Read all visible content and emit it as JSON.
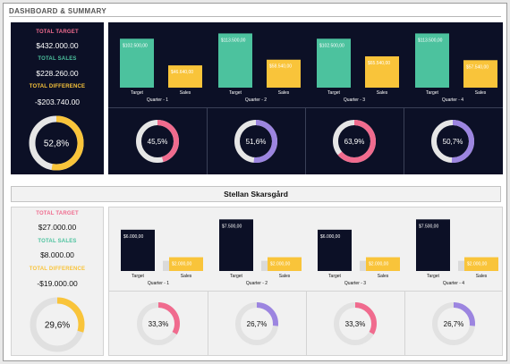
{
  "header": {
    "title": "DASHBOARD & SUMMARY"
  },
  "colors": {
    "pink": "#f06b8e",
    "green": "#4cc29e",
    "yellow": "#f9c43a",
    "purple": "#9c85e0",
    "navy": "#0c1026",
    "ring": "#e6e6e6"
  },
  "summary": {
    "total_target_label": "TOTAL TARGET",
    "total_target_value": "$432.000.00",
    "total_sales_label": "TOTAL SALES",
    "total_sales_value": "$228.260.00",
    "total_difference_label": "TOTAL DIFFERENCE",
    "total_difference_value": "-$203.740.00",
    "overall_pct": 0.528,
    "overall_pct_label": "52,8%"
  },
  "person": {
    "name": "Stellan Skarsgård",
    "total_target_label": "TOTAL TARGET",
    "total_target_value": "$27.000.00",
    "total_sales_label": "TOTAL SALES",
    "total_sales_value": "$8.000.00",
    "total_difference_label": "TOTAL DIFFERENCE",
    "total_difference_value": "-$19.000.00",
    "overall_pct": 0.296,
    "overall_pct_label": "29,6%"
  },
  "chart_data": [
    {
      "type": "bar",
      "categories": [
        "Quarter - 1",
        "Quarter - 2",
        "Quarter - 3",
        "Quarter - 4"
      ],
      "bar_labels": [
        "Target",
        "Sales"
      ],
      "series": [
        {
          "name": "Target",
          "values": [
            102500,
            113500,
            102500,
            113500
          ],
          "labels": [
            "$102.500,00",
            "$113.500,00",
            "$102.500,00",
            "$113.500,00"
          ]
        },
        {
          "name": "Sales",
          "values": [
            46640,
            58540,
            65540,
            57540
          ],
          "labels": [
            "$46.640,00",
            "$58.540,00",
            "$65.540,00",
            "$57.540,00"
          ]
        }
      ],
      "ylim": [
        0,
        118000
      ]
    },
    {
      "type": "bar",
      "categories": [
        "Quarter - 1",
        "Quarter - 2",
        "Quarter - 3",
        "Quarter - 4"
      ],
      "bar_labels": [
        "Target",
        "Sales"
      ],
      "series": [
        {
          "name": "Target",
          "values": [
            6000,
            7500,
            6000,
            7500
          ],
          "labels": [
            "$6.000,00",
            "$7.500,00",
            "$6.000,00",
            "$7.500,00"
          ]
        },
        {
          "name": "Sales",
          "values": [
            2000,
            2000,
            2000,
            2000
          ],
          "labels": [
            "$2.000,00",
            "$2.000,00",
            "$2.000,00",
            "$2.000,00"
          ]
        }
      ],
      "ylim": [
        0,
        7800
      ]
    }
  ],
  "summary_donuts": [
    {
      "value": 0.455,
      "label": "45,5%",
      "color": "#f06b8e"
    },
    {
      "value": 0.516,
      "label": "51,6%",
      "color": "#9c85e0"
    },
    {
      "value": 0.639,
      "label": "63,9%",
      "color": "#f06b8e"
    },
    {
      "value": 0.507,
      "label": "50,7%",
      "color": "#9c85e0"
    }
  ],
  "person_donuts": [
    {
      "value": 0.333,
      "label": "33,3%",
      "color": "#f06b8e"
    },
    {
      "value": 0.267,
      "label": "26,7%",
      "color": "#9c85e0"
    },
    {
      "value": 0.333,
      "label": "33,3%",
      "color": "#f06b8e"
    },
    {
      "value": 0.267,
      "label": "26,7%",
      "color": "#9c85e0"
    }
  ]
}
